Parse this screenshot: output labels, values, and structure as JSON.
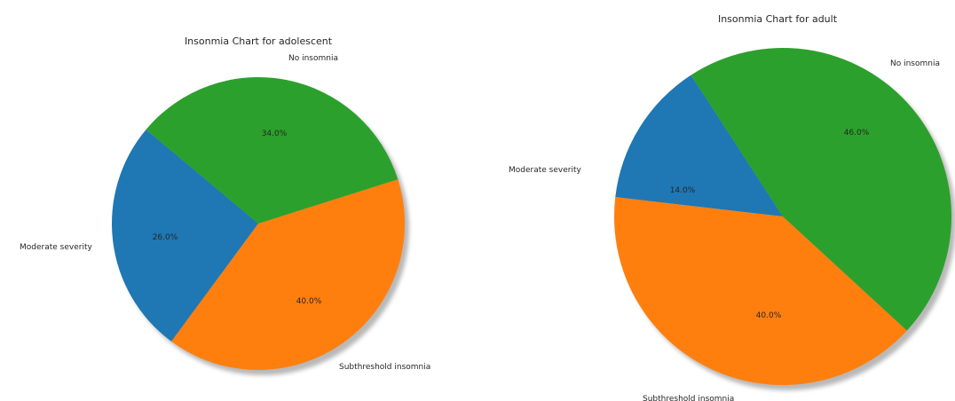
{
  "chart_data": [
    {
      "type": "pie",
      "title": "Insonmia Chart for adolescent",
      "slices": [
        {
          "label": "Moderate severity",
          "value": 26.0,
          "pct_text": "26.0%",
          "color": "#1f77b4"
        },
        {
          "label": "Subthreshold insomnia",
          "value": 40.0,
          "pct_text": "40.0%",
          "color": "#ff7f0e"
        },
        {
          "label": "No insomnia",
          "value": 34.0,
          "pct_text": "34.0%",
          "color": "#2ca02c"
        }
      ],
      "shadow": true
    },
    {
      "type": "pie",
      "title": "Insonmia Chart for adult",
      "slices": [
        {
          "label": "Moderate severity",
          "value": 14.0,
          "pct_text": "14.0%",
          "color": "#1f77b4"
        },
        {
          "label": "Subthreshold insomnia",
          "value": 40.0,
          "pct_text": "40.0%",
          "color": "#ff7f0e"
        },
        {
          "label": "No insomnia",
          "value": 46.0,
          "pct_text": "46.0%",
          "color": "#2ca02c"
        }
      ],
      "shadow": true
    }
  ]
}
